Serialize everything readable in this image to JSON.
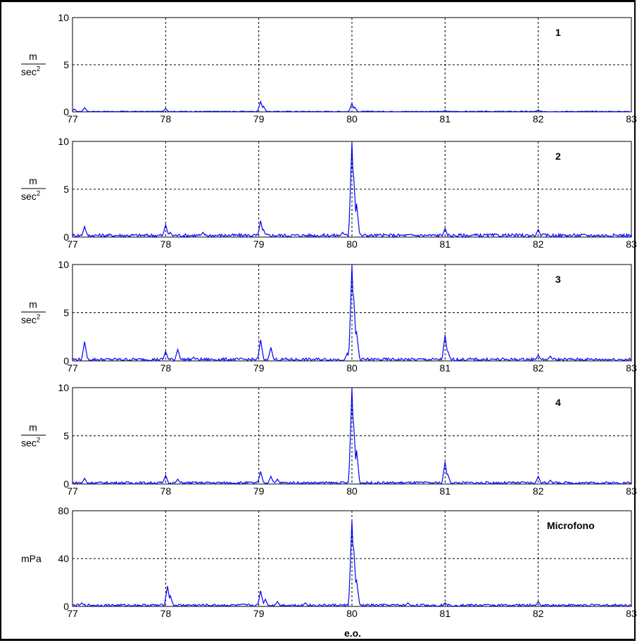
{
  "figure": {
    "xlabel": "e.o."
  },
  "chart_data": [
    {
      "type": "line",
      "annotation": "1",
      "ylabel_num": "m",
      "ylabel_den": "sec",
      "ylabel_sup": "2",
      "xlim": [
        77,
        83
      ],
      "ylim": [
        0,
        10
      ],
      "xticks": [
        "77",
        "78",
        "79",
        "80",
        "81",
        "82",
        "83"
      ],
      "yticks": [
        "0",
        "5",
        "10"
      ],
      "grid": true,
      "series": [
        {
          "color": "#0000ff",
          "noise": 0.08,
          "peaks": [
            [
              77.02,
              0.3
            ],
            [
              77.13,
              0.45
            ],
            [
              78.0,
              0.35
            ],
            [
              79.02,
              1.1
            ],
            [
              79.05,
              0.6
            ],
            [
              80.0,
              0.9
            ],
            [
              80.03,
              0.5
            ],
            [
              81.0,
              0.15
            ],
            [
              82.0,
              0.2
            ]
          ]
        }
      ]
    },
    {
      "type": "line",
      "annotation": "2",
      "ylabel_num": "m",
      "ylabel_den": "sec",
      "ylabel_sup": "2",
      "xlim": [
        77,
        83
      ],
      "ylim": [
        0,
        10
      ],
      "xticks": [
        "77",
        "78",
        "79",
        "80",
        "81",
        "82",
        "83"
      ],
      "yticks": [
        "0",
        "5",
        "10"
      ],
      "grid": true,
      "series": [
        {
          "color": "#0000ff",
          "noise": 0.35,
          "peaks": [
            [
              77.13,
              1.1
            ],
            [
              78.0,
              1.3
            ],
            [
              78.05,
              0.5
            ],
            [
              78.4,
              0.5
            ],
            [
              79.02,
              1.7
            ],
            [
              79.05,
              0.8
            ],
            [
              79.9,
              0.5
            ],
            [
              80.0,
              9.9
            ],
            [
              80.02,
              6.2
            ],
            [
              80.05,
              3.5
            ],
            [
              81.0,
              0.9
            ],
            [
              82.0,
              0.8
            ]
          ]
        }
      ]
    },
    {
      "type": "line",
      "annotation": "3",
      "ylabel_num": "m",
      "ylabel_den": "sec",
      "ylabel_sup": "2",
      "xlim": [
        77,
        83
      ],
      "ylim": [
        0,
        10
      ],
      "xticks": [
        "77",
        "78",
        "79",
        "80",
        "81",
        "82",
        "83"
      ],
      "yticks": [
        "0",
        "5",
        "10"
      ],
      "grid": true,
      "series": [
        {
          "color": "#0000ff",
          "noise": 0.3,
          "peaks": [
            [
              77.13,
              2.0
            ],
            [
              78.0,
              1.0
            ],
            [
              78.13,
              1.2
            ],
            [
              78.3,
              0.4
            ],
            [
              79.02,
              2.2
            ],
            [
              79.13,
              1.4
            ],
            [
              79.95,
              0.8
            ],
            [
              80.0,
              9.9
            ],
            [
              80.02,
              6.5
            ],
            [
              80.05,
              3.0
            ],
            [
              81.0,
              2.7
            ],
            [
              81.03,
              1.0
            ],
            [
              82.0,
              0.6
            ],
            [
              82.13,
              0.5
            ]
          ]
        }
      ]
    },
    {
      "type": "line",
      "annotation": "4",
      "ylabel_num": "m",
      "ylabel_den": "sec",
      "ylabel_sup": "2",
      "xlim": [
        77,
        83
      ],
      "ylim": [
        0,
        10
      ],
      "xticks": [
        "77",
        "78",
        "79",
        "80",
        "81",
        "82",
        "83"
      ],
      "yticks": [
        "0",
        "5",
        "10"
      ],
      "grid": true,
      "series": [
        {
          "color": "#0000ff",
          "noise": 0.25,
          "peaks": [
            [
              77.13,
              0.6
            ],
            [
              78.0,
              0.9
            ],
            [
              78.13,
              0.5
            ],
            [
              79.02,
              1.3
            ],
            [
              79.13,
              0.8
            ],
            [
              79.2,
              0.5
            ],
            [
              80.0,
              9.9
            ],
            [
              80.02,
              6.0
            ],
            [
              80.05,
              3.5
            ],
            [
              81.0,
              2.3
            ],
            [
              81.03,
              1.0
            ],
            [
              82.0,
              0.8
            ],
            [
              82.13,
              0.4
            ]
          ]
        }
      ]
    },
    {
      "type": "line",
      "annotation": "Microfono",
      "ylabel_text": "mPa",
      "xlim": [
        77,
        83
      ],
      "ylim": [
        0,
        80
      ],
      "xticks": [
        "77",
        "78",
        "79",
        "80",
        "81",
        "82",
        "83"
      ],
      "yticks": [
        "0",
        "40",
        "80"
      ],
      "grid": true,
      "series": [
        {
          "color": "#0000ff",
          "noise": 2.0,
          "peaks": [
            [
              77.1,
              3
            ],
            [
              78.02,
              17
            ],
            [
              78.05,
              9
            ],
            [
              79.02,
              13
            ],
            [
              79.07,
              6
            ],
            [
              79.2,
              4
            ],
            [
              79.5,
              3
            ],
            [
              80.0,
              72
            ],
            [
              80.02,
              48
            ],
            [
              80.05,
              22
            ],
            [
              80.6,
              3
            ],
            [
              81.0,
              3
            ],
            [
              82.0,
              4
            ]
          ]
        }
      ]
    }
  ]
}
